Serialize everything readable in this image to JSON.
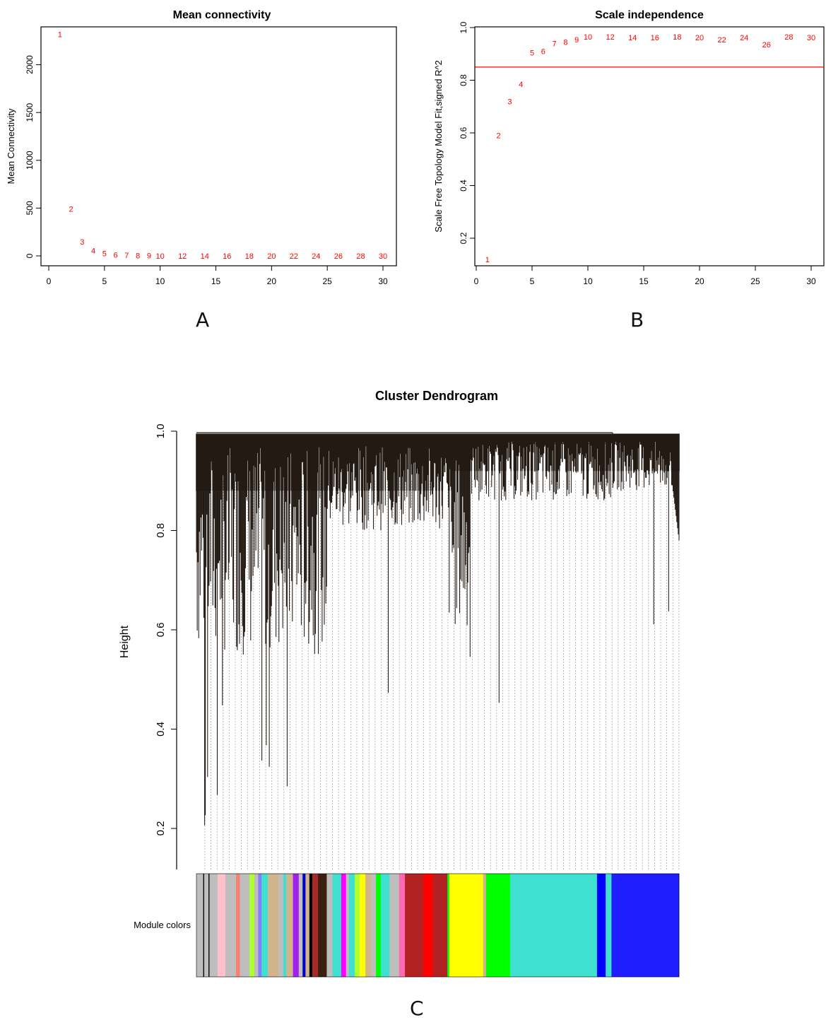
{
  "colors": {
    "points": "#ff0000",
    "threshold_line": "#ff0000",
    "axis": "#000000",
    "dendrogram": "#231a14",
    "leaf_guides": "#a8a8a8"
  },
  "panel_letters": {
    "a": "A",
    "b": "B",
    "c": "C"
  },
  "chart_data": [
    {
      "id": "A",
      "type": "scatter",
      "title": "Mean connectivity",
      "xlabel": "",
      "ylabel": "Mean Connectivity",
      "marker": "text-label",
      "xlim": [
        0,
        30
      ],
      "ylim": [
        0,
        2300
      ],
      "xticks": [
        0,
        5,
        10,
        15,
        20,
        25,
        30
      ],
      "yticks": [
        0,
        500,
        1000,
        1500,
        2000
      ],
      "points": [
        {
          "x": 1,
          "y": 2320,
          "label": "1"
        },
        {
          "x": 2,
          "y": 490,
          "label": "2"
        },
        {
          "x": 3,
          "y": 148,
          "label": "3"
        },
        {
          "x": 4,
          "y": 55,
          "label": "4"
        },
        {
          "x": 5,
          "y": 25,
          "label": "5"
        },
        {
          "x": 6,
          "y": 12,
          "label": "6"
        },
        {
          "x": 7,
          "y": 7,
          "label": "7"
        },
        {
          "x": 8,
          "y": 4,
          "label": "8"
        },
        {
          "x": 9,
          "y": 2,
          "label": "9"
        },
        {
          "x": 10,
          "y": 1,
          "label": "10"
        },
        {
          "x": 12,
          "y": 0,
          "label": "12"
        },
        {
          "x": 14,
          "y": 0,
          "label": "14"
        },
        {
          "x": 16,
          "y": 0,
          "label": "16"
        },
        {
          "x": 18,
          "y": 0,
          "label": "18"
        },
        {
          "x": 20,
          "y": 0,
          "label": "20"
        },
        {
          "x": 22,
          "y": 0,
          "label": "22"
        },
        {
          "x": 24,
          "y": 0,
          "label": "24"
        },
        {
          "x": 26,
          "y": 0,
          "label": "26"
        },
        {
          "x": 28,
          "y": 0,
          "label": "28"
        },
        {
          "x": 30,
          "y": 0,
          "label": "30"
        }
      ]
    },
    {
      "id": "B",
      "type": "scatter",
      "title": "Scale independence",
      "xlabel": "",
      "ylabel": "Scale Free Topology Model Fit,signed R^2",
      "marker": "text-label",
      "xlim": [
        0,
        30
      ],
      "ylim": [
        0.1,
        1.0
      ],
      "xticks": [
        0,
        5,
        10,
        15,
        20,
        25,
        30
      ],
      "yticks": [
        0.2,
        0.4,
        0.6,
        0.8,
        1.0
      ],
      "ytick_labels": [
        "0.2",
        "0.4",
        "0.6",
        "0.8",
        "1.0"
      ],
      "hline": 0.85,
      "points": [
        {
          "x": 1,
          "y": 0.12,
          "label": "1"
        },
        {
          "x": 2,
          "y": 0.59,
          "label": "2"
        },
        {
          "x": 3,
          "y": 0.72,
          "label": "3"
        },
        {
          "x": 4,
          "y": 0.785,
          "label": "4"
        },
        {
          "x": 5,
          "y": 0.905,
          "label": "5"
        },
        {
          "x": 6,
          "y": 0.91,
          "label": "6"
        },
        {
          "x": 7,
          "y": 0.94,
          "label": "7"
        },
        {
          "x": 8,
          "y": 0.945,
          "label": "8"
        },
        {
          "x": 9,
          "y": 0.955,
          "label": "9"
        },
        {
          "x": 10,
          "y": 0.965,
          "label": "10"
        },
        {
          "x": 12,
          "y": 0.965,
          "label": "12"
        },
        {
          "x": 14,
          "y": 0.962,
          "label": "14"
        },
        {
          "x": 16,
          "y": 0.962,
          "label": "16"
        },
        {
          "x": 18,
          "y": 0.965,
          "label": "18"
        },
        {
          "x": 20,
          "y": 0.962,
          "label": "20"
        },
        {
          "x": 22,
          "y": 0.955,
          "label": "22"
        },
        {
          "x": 24,
          "y": 0.962,
          "label": "24"
        },
        {
          "x": 26,
          "y": 0.935,
          "label": "26"
        },
        {
          "x": 28,
          "y": 0.965,
          "label": "28"
        },
        {
          "x": 30,
          "y": 0.962,
          "label": "30"
        }
      ]
    },
    {
      "id": "C",
      "type": "dendrogram",
      "title": "Cluster Dendrogram",
      "ylabel": "Height",
      "ylim": [
        0.1,
        1.0
      ],
      "yticks": [
        0.2,
        0.4,
        0.6,
        0.8,
        1.0
      ],
      "ytick_labels": [
        "0.2",
        "0.4",
        "0.6",
        "0.8",
        "1.0"
      ],
      "color_bar_label": "Module colors",
      "module_colors": [
        {
          "color": "#bebebe",
          "start": 0.0,
          "end": 0.014
        },
        {
          "color": "#000000",
          "start": 0.014,
          "end": 0.016
        },
        {
          "color": "#bebebe",
          "start": 0.016,
          "end": 0.025
        },
        {
          "color": "#000000",
          "start": 0.025,
          "end": 0.027
        },
        {
          "color": "#bebebe",
          "start": 0.027,
          "end": 0.044
        },
        {
          "color": "#ffc0cb",
          "start": 0.044,
          "end": 0.06
        },
        {
          "color": "#bebebe",
          "start": 0.06,
          "end": 0.082
        },
        {
          "color": "#fa8072",
          "start": 0.082,
          "end": 0.09
        },
        {
          "color": "#bebebe",
          "start": 0.09,
          "end": 0.11
        },
        {
          "color": "#adff2f",
          "start": 0.11,
          "end": 0.12
        },
        {
          "color": "#bebebe",
          "start": 0.12,
          "end": 0.128
        },
        {
          "color": "#8080ff",
          "start": 0.128,
          "end": 0.135
        },
        {
          "color": "#40e0d0",
          "start": 0.135,
          "end": 0.148
        },
        {
          "color": "#d2b48c",
          "start": 0.148,
          "end": 0.17
        },
        {
          "color": "#bebebe",
          "start": 0.17,
          "end": 0.18
        },
        {
          "color": "#40e0d0",
          "start": 0.18,
          "end": 0.186
        },
        {
          "color": "#d2b48c",
          "start": 0.186,
          "end": 0.2
        },
        {
          "color": "#a020f0",
          "start": 0.2,
          "end": 0.212
        },
        {
          "color": "#bebebe",
          "start": 0.212,
          "end": 0.22
        },
        {
          "color": "#0000cd",
          "start": 0.22,
          "end": 0.226
        },
        {
          "color": "#d2b48c",
          "start": 0.226,
          "end": 0.234
        },
        {
          "color": "#000000",
          "start": 0.234,
          "end": 0.24
        },
        {
          "color": "#a52a2a",
          "start": 0.24,
          "end": 0.252
        },
        {
          "color": "#3b1f0f",
          "start": 0.252,
          "end": 0.27
        },
        {
          "color": "#bebebe",
          "start": 0.27,
          "end": 0.282
        },
        {
          "color": "#40e0d0",
          "start": 0.282,
          "end": 0.3
        },
        {
          "color": "#ff00ff",
          "start": 0.3,
          "end": 0.31
        },
        {
          "color": "#bebebe",
          "start": 0.31,
          "end": 0.316
        },
        {
          "color": "#40e0d0",
          "start": 0.316,
          "end": 0.328
        },
        {
          "color": "#adff2f",
          "start": 0.328,
          "end": 0.338
        },
        {
          "color": "#ffff00",
          "start": 0.338,
          "end": 0.35
        },
        {
          "color": "#d2b48c",
          "start": 0.35,
          "end": 0.362
        },
        {
          "color": "#bebebe",
          "start": 0.362,
          "end": 0.372
        },
        {
          "color": "#00ff00",
          "start": 0.372,
          "end": 0.382
        },
        {
          "color": "#40e0d0",
          "start": 0.382,
          "end": 0.4
        },
        {
          "color": "#bebebe",
          "start": 0.4,
          "end": 0.42
        },
        {
          "color": "#ff69b4",
          "start": 0.42,
          "end": 0.432
        },
        {
          "color": "#b22222",
          "start": 0.432,
          "end": 0.47
        },
        {
          "color": "#ff0000",
          "start": 0.47,
          "end": 0.49
        },
        {
          "color": "#b22222",
          "start": 0.49,
          "end": 0.52
        },
        {
          "color": "#00ff00",
          "start": 0.52,
          "end": 0.524
        },
        {
          "color": "#ffff00",
          "start": 0.524,
          "end": 0.594
        },
        {
          "color": "#d2b48c",
          "start": 0.594,
          "end": 0.6
        },
        {
          "color": "#00ff00",
          "start": 0.6,
          "end": 0.65
        },
        {
          "color": "#40e0d0",
          "start": 0.65,
          "end": 0.83
        },
        {
          "color": "#0000ff",
          "start": 0.83,
          "end": 0.848
        },
        {
          "color": "#40e0d0",
          "start": 0.848,
          "end": 0.86
        },
        {
          "color": "#1e1eff",
          "start": 0.86,
          "end": 1.0
        }
      ]
    }
  ]
}
